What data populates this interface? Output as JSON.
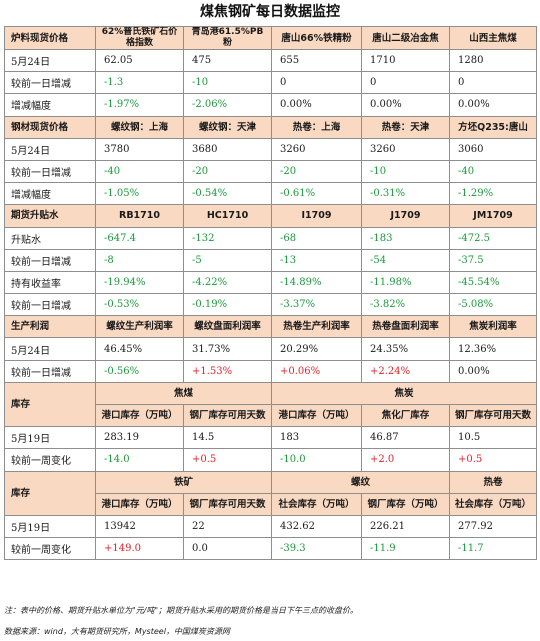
{
  "title": "煤焦钢矿每日数据监控",
  "section1": {
    "label": "炉料现货价格",
    "headers": [
      "62%普氏铁矿石价格指数",
      "青岛港61.5%PB粉",
      "唐山66%铁精粉",
      "唐山二级冶金焦",
      "山西主焦煤"
    ],
    "rows": [
      {
        "label": "5月24日",
        "values": [
          "62.05",
          "475",
          "655",
          "1710",
          "1280"
        ]
      },
      {
        "label": "较前一日增减",
        "values": [
          "-1.3",
          "-10",
          "0",
          "0",
          "0"
        ]
      },
      {
        "label": "增减幅度",
        "values": [
          "-1.97%",
          "-2.06%",
          "0.00%",
          "0.00%",
          "0.00%"
        ]
      }
    ]
  },
  "section2": {
    "label": "钢材现货价格",
    "headers": [
      "螺纹钢：上海",
      "螺纹钢：天津",
      "热卷：上海",
      "热卷：天津",
      "方坯Q235:唐山"
    ],
    "rows": [
      {
        "label": "5月24日",
        "values": [
          "3780",
          "3680",
          "3260",
          "3260",
          "3060"
        ]
      },
      {
        "label": "较前一日增减",
        "values": [
          "-40",
          "-20",
          "-20",
          "-10",
          "-40"
        ]
      },
      {
        "label": "增减幅度",
        "values": [
          "-1.05%",
          "-0.54%",
          "-0.61%",
          "-0.31%",
          "-1.29%"
        ]
      }
    ]
  },
  "section3": {
    "label": "期货升贴水",
    "headers": [
      "RB1710",
      "HC1710",
      "I1709",
      "J1709",
      "JM1709"
    ],
    "rows": [
      {
        "label": "升贴水",
        "values": [
          "-647.4",
          "-132",
          "-68",
          "-183",
          "-472.5"
        ]
      },
      {
        "label": "较前一日增减",
        "values": [
          "-8",
          "-5",
          "-13",
          "-54",
          "-37.5"
        ]
      },
      {
        "label": "持有收益率",
        "values": [
          "-19.94%",
          "-4.22%",
          "-14.89%",
          "-11.98%",
          "-45.54%"
        ]
      },
      {
        "label": "较前一日增减",
        "values": [
          "-0.53%",
          "-0.19%",
          "-3.37%",
          "-3.82%",
          "-5.08%"
        ]
      }
    ]
  },
  "section4": {
    "label": "生产利润",
    "headers": [
      "螺纹生产利润率",
      "螺纹盘面利润率",
      "热卷生产利润率",
      "热卷盘面利润率",
      "焦炭利润率"
    ],
    "rows": [
      {
        "label": "5月24日",
        "values": [
          "46.45%",
          "31.73%",
          "20.29%",
          "24.35%",
          "12.36%"
        ]
      },
      {
        "label": "较前一日增减",
        "values": [
          "-0.56%",
          "+1.53%",
          "+0.06%",
          "+2.24%",
          "0.00%"
        ]
      }
    ]
  },
  "section5": {
    "label": "库存",
    "groups": [
      "焦煤",
      "焦炭"
    ],
    "headers": [
      "港口库存（万吨）",
      "钢厂库存可用天数",
      "港口库存（万吨）",
      "焦化厂库存",
      "钢厂库存可用天数"
    ],
    "rows": [
      {
        "label": "5月19日",
        "values": [
          "283.19",
          "14.5",
          "183",
          "46.87",
          "10.5"
        ]
      },
      {
        "label": "较前一周变化",
        "values": [
          "-14.0",
          "+0.5",
          "-10.0",
          "+2.0",
          "+0.5"
        ]
      }
    ]
  },
  "section6": {
    "label": "库存",
    "groups": [
      "铁矿",
      "螺纹",
      "热卷"
    ],
    "headers": [
      "港口库存（万吨）",
      "钢厂库存可用天数",
      "社会库存（万吨）",
      "钢厂库存（万吨）",
      "社会库存（万吨）"
    ],
    "rows": [
      {
        "label": "5月19日",
        "values": [
          "13942",
          "22",
          "432.62",
          "226.21",
          "277.92"
        ]
      },
      {
        "label": "较前一周变化",
        "values": [
          "+149.0",
          "0.0",
          "-39.3",
          "-11.9",
          "-11.7"
        ]
      }
    ]
  },
  "notes": {
    "line1": "注：表中的价格、期货升贴水单位为\"元/吨\"；期货升贴水采用的期货价格是当日下午三点的收盘价。",
    "line2": "数据来源：wind，大有期货研究所，Mysteel，中国煤炭资源网"
  },
  "colors": {
    "header_bg": "#fad9c2",
    "positive": "#e8202a",
    "negative": "#1a9a3a",
    "border": "#8e8e8e"
  }
}
